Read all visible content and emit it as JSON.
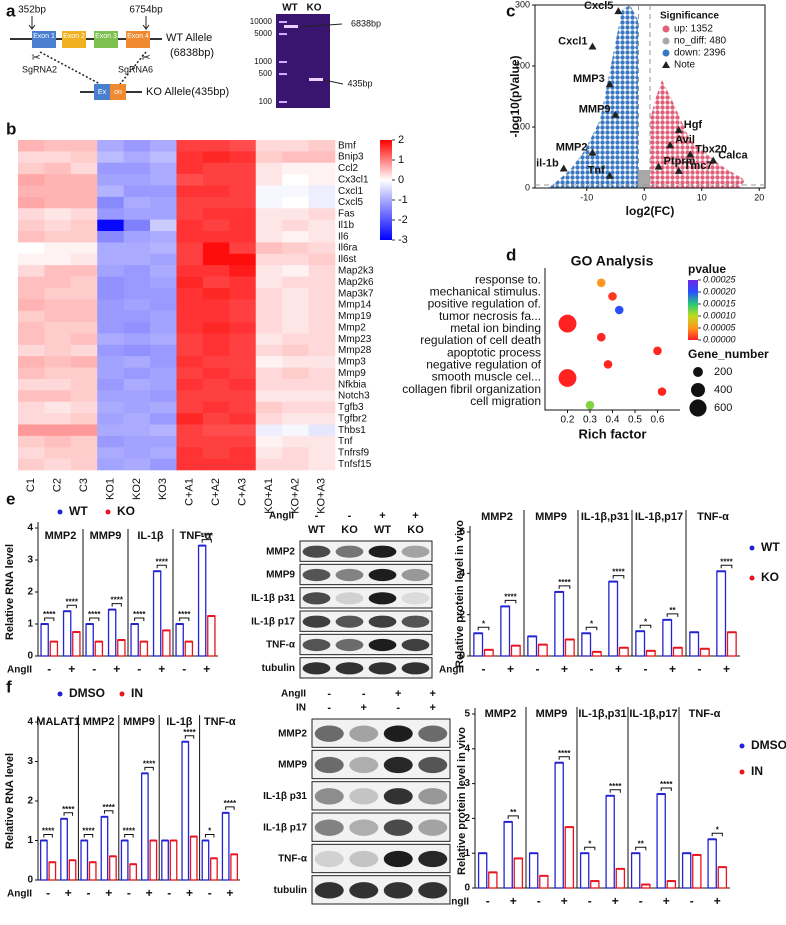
{
  "panel_labels": [
    "a",
    "b",
    "c",
    "d",
    "e",
    "f"
  ],
  "a": {
    "left_bp": "352bp",
    "right_bp": "6754bp",
    "exons": [
      "Exon 1",
      "Exon 2",
      "Exon 3",
      "Exon 4"
    ],
    "wt_allele": "WT Allele",
    "wt_size": "(6838bp)",
    "sgrna": [
      "SgRNA2",
      "SgRNA6"
    ],
    "ko_exon": [
      "Ex",
      "on"
    ],
    "ko_allele": "KO Allele(435bp)",
    "gel": {
      "lanes": [
        "WT",
        "KO"
      ],
      "ladder": [
        10000,
        5000,
        1000,
        500,
        100
      ],
      "bands": [
        "6838bp",
        "435bp"
      ]
    }
  },
  "b": {
    "type": "heatmap",
    "rows": [
      "Bmf",
      "Bnip3",
      "Ccl2",
      "Cx3cl1",
      "Cxcl1",
      "Cxcl5",
      "Fas",
      "Il1b",
      "Il6",
      "Il6ra",
      "Il6st",
      "Map2k3",
      "Map2k6",
      "Map3k7",
      "Mmp14",
      "Mmp19",
      "Mmp2",
      "Mmp23",
      "Mmp28",
      "Mmp3",
      "Mmp9",
      "Nfkbia",
      "Notch3",
      "Tgfb3",
      "Tgfbr2",
      "Thbs1",
      "Tnf",
      "Tnfrsf9",
      "Tnfsf15"
    ],
    "columns": [
      "C1",
      "C2",
      "C3",
      "KO1",
      "KO2",
      "KO3",
      "C+A1",
      "C+A2",
      "C+A3",
      "KO+A1",
      "KO+A2",
      "KO+A3"
    ],
    "values": [
      [
        0.6,
        0.5,
        0.5,
        -1.0,
        -1.2,
        -1.0,
        1.5,
        1.5,
        1.4,
        0.3,
        0.3,
        0.4
      ],
      [
        0.3,
        0.3,
        0.4,
        -0.8,
        -1.0,
        -0.8,
        1.6,
        1.7,
        1.6,
        0.4,
        0.5,
        0.5
      ],
      [
        0.4,
        0.5,
        0.3,
        -1.2,
        -1.2,
        -1.0,
        1.6,
        1.5,
        1.5,
        0.2,
        0.1,
        0.1
      ],
      [
        0.7,
        0.6,
        0.6,
        -1.1,
        -1.1,
        -1.0,
        1.4,
        1.5,
        1.5,
        0.2,
        0.0,
        0.1
      ],
      [
        0.6,
        0.6,
        0.6,
        -0.9,
        -1.2,
        -1.2,
        1.6,
        1.6,
        1.5,
        -0.1,
        -0.1,
        -0.2
      ],
      [
        0.7,
        0.6,
        0.6,
        -1.4,
        -1.0,
        -1.1,
        1.5,
        1.5,
        1.5,
        -0.1,
        0.0,
        -0.2
      ],
      [
        0.3,
        0.2,
        0.3,
        -1.2,
        -1.1,
        -1.1,
        1.5,
        1.6,
        1.6,
        0.2,
        0.2,
        0.3
      ],
      [
        0.4,
        0.3,
        0.4,
        -2.9,
        -1.5,
        -0.6,
        1.6,
        1.5,
        1.6,
        0.2,
        0.3,
        0.2
      ],
      [
        0.5,
        0.4,
        0.4,
        -1.4,
        -1.1,
        -1.0,
        1.6,
        1.6,
        1.6,
        0.2,
        0.1,
        0.2
      ],
      [
        0.0,
        0.1,
        0.1,
        -1.0,
        -1.0,
        -0.9,
        1.5,
        1.9,
        1.5,
        0.5,
        0.4,
        0.3
      ],
      [
        0.1,
        0.1,
        0.2,
        -1.0,
        -1.0,
        -1.1,
        1.5,
        1.9,
        1.9,
        0.3,
        0.3,
        0.4
      ],
      [
        0.3,
        0.5,
        0.5,
        -1.1,
        -1.2,
        -1.0,
        1.6,
        1.6,
        1.8,
        0.2,
        0.1,
        0.3
      ],
      [
        0.5,
        0.5,
        0.4,
        -1.3,
        -1.2,
        -1.1,
        1.7,
        1.5,
        1.6,
        0.2,
        0.3,
        0.3
      ],
      [
        0.5,
        0.4,
        0.4,
        -1.3,
        -1.2,
        -1.2,
        1.6,
        1.7,
        1.6,
        0.3,
        0.2,
        0.3
      ],
      [
        0.6,
        0.5,
        0.5,
        -1.2,
        -1.1,
        -1.2,
        1.6,
        1.6,
        1.5,
        0.3,
        0.2,
        0.3
      ],
      [
        0.4,
        0.5,
        0.5,
        -1.2,
        -1.2,
        -1.1,
        1.6,
        1.6,
        1.5,
        0.3,
        0.2,
        0.3
      ],
      [
        0.5,
        0.4,
        0.4,
        -1.2,
        -1.3,
        -1.1,
        1.6,
        1.7,
        1.6,
        0.3,
        0.2,
        0.3
      ],
      [
        0.5,
        0.4,
        0.5,
        -1.0,
        -1.1,
        -1.0,
        1.5,
        1.6,
        1.5,
        0.2,
        0.3,
        0.3
      ],
      [
        0.3,
        0.4,
        0.3,
        -1.2,
        -1.3,
        -1.2,
        1.5,
        1.6,
        1.5,
        0.3,
        0.4,
        0.3
      ],
      [
        0.6,
        0.5,
        0.6,
        -1.1,
        -1.0,
        -1.2,
        1.6,
        1.5,
        1.5,
        0.1,
        0.2,
        0.2
      ],
      [
        0.5,
        0.4,
        0.4,
        -1.1,
        -1.2,
        -1.1,
        1.5,
        1.6,
        1.5,
        0.3,
        0.4,
        0.3
      ],
      [
        0.3,
        0.3,
        0.4,
        -1.2,
        -1.0,
        -1.1,
        1.6,
        1.5,
        1.6,
        0.3,
        0.3,
        0.3
      ],
      [
        0.5,
        0.5,
        0.4,
        -1.1,
        -1.1,
        -1.2,
        1.5,
        1.5,
        1.5,
        0.2,
        0.2,
        0.2
      ],
      [
        0.3,
        0.2,
        0.3,
        -1.0,
        -1.1,
        -1.0,
        1.5,
        1.6,
        1.5,
        0.4,
        0.3,
        0.3
      ],
      [
        0.3,
        0.3,
        0.4,
        -1.1,
        -1.0,
        -1.2,
        1.7,
        1.5,
        1.6,
        0.3,
        0.2,
        0.2
      ],
      [
        0.8,
        0.8,
        0.8,
        -1.0,
        -1.0,
        -0.9,
        1.5,
        1.4,
        1.4,
        -0.2,
        -0.1,
        -0.3
      ],
      [
        0.4,
        0.5,
        0.4,
        -1.2,
        -1.1,
        -1.1,
        1.5,
        1.5,
        1.5,
        0.1,
        0.2,
        0.2
      ],
      [
        0.3,
        0.4,
        0.4,
        -1.0,
        -1.1,
        -1.0,
        1.6,
        1.5,
        1.6,
        0.2,
        0.3,
        0.2
      ],
      [
        0.4,
        0.3,
        0.4,
        -1.1,
        -1.0,
        -1.2,
        1.6,
        1.6,
        1.6,
        0.3,
        0.3,
        0.2
      ]
    ],
    "colorbar": {
      "lim": [
        -3,
        2
      ],
      "ticks": [
        2,
        1,
        0,
        -1,
        -2,
        -3
      ]
    }
  },
  "c": {
    "type": "volcano",
    "xlabel": "log2(FC)",
    "ylabel": "-log10(pValue)",
    "xlim": [
      -19,
      21
    ],
    "ylim": [
      0,
      300
    ],
    "xticks": [
      -10,
      0,
      10,
      20
    ],
    "yticks": [
      0,
      100,
      200,
      300
    ],
    "legend_title": "Significance",
    "legend": [
      {
        "label": "up: 1352",
        "color": "#e0607a"
      },
      {
        "label": "no_diff: 480",
        "color": "#a8a8a8"
      },
      {
        "label": "down: 2396",
        "color": "#3a78c2"
      },
      {
        "label": "Note",
        "color": "#222222"
      }
    ],
    "notes": [
      {
        "name": "Cxcl5",
        "x": -4.5,
        "y": 290
      },
      {
        "name": "Cxcl1",
        "x": -9,
        "y": 232
      },
      {
        "name": "MMP3",
        "x": -6,
        "y": 170
      },
      {
        "name": "MMP9",
        "x": -5,
        "y": 120
      },
      {
        "name": "MMP2",
        "x": -9,
        "y": 58
      },
      {
        "name": "il-1b",
        "x": -14,
        "y": 32
      },
      {
        "name": "Tnf",
        "x": -6,
        "y": 20
      },
      {
        "name": "Hgf",
        "x": 6,
        "y": 95
      },
      {
        "name": "Avil",
        "x": 4.5,
        "y": 70
      },
      {
        "name": "Tbx20",
        "x": 8,
        "y": 55
      },
      {
        "name": "Calca",
        "x": 12,
        "y": 45
      },
      {
        "name": "Ptprm",
        "x": 2.5,
        "y": 35
      },
      {
        "name": "Tmc7",
        "x": 6,
        "y": 28
      }
    ]
  },
  "d": {
    "type": "bubble",
    "title": "GO Analysis",
    "xlabel": "Rich factor",
    "xlim": [
      0.1,
      0.7
    ],
    "xticks": [
      0.2,
      0.3,
      0.4,
      0.5,
      0.6
    ],
    "terms": [
      "response to.",
      "mechanical stimulus.",
      "positive regulation of.",
      "tumor necrosis fa...",
      "metal ion binding",
      "regulation of cell death",
      "apoptotic process",
      "negative regulation of",
      "smooth muscle cel...",
      "collagen fibril organization",
      "cell migration"
    ],
    "points": [
      {
        "rich": 0.35,
        "pvalue": 5e-05,
        "genes": 150
      },
      {
        "rich": 0.4,
        "pvalue": 1e-05,
        "genes": 150
      },
      {
        "rich": 0.43,
        "pvalue": 0.0002,
        "genes": 150
      },
      {
        "rich": 0.2,
        "pvalue": 1e-06,
        "genes": 650
      },
      {
        "rich": 0.35,
        "pvalue": 2e-06,
        "genes": 150
      },
      {
        "rich": 0.6,
        "pvalue": 3e-06,
        "genes": 150
      },
      {
        "rich": 0.38,
        "pvalue": 2e-06,
        "genes": 150
      },
      {
        "rich": 0.2,
        "pvalue": 1e-06,
        "genes": 650
      },
      {
        "rich": 0.62,
        "pvalue": 2e-06,
        "genes": 150
      },
      {
        "rich": 0.3,
        "pvalue": 0.00012,
        "genes": 150
      }
    ],
    "pvalue_title": "pvalue",
    "pvalue_lim": [
      0,
      0.00025
    ],
    "pvalue_ticks": [
      {
        "value": 0.00025,
        "label": "0.00025"
      },
      {
        "value": 0.0002,
        "label": "0.00020"
      },
      {
        "value": 0.00015,
        "label": "0.00015"
      },
      {
        "value": 0.0001,
        "label": "0.00010"
      },
      {
        "value": 5e-05,
        "label": "0.00005"
      },
      {
        "value": 0,
        "label": "0.00000"
      }
    ],
    "size_title": "Gene_number",
    "size_ticks": [
      200,
      400,
      600
    ]
  },
  "e": {
    "rna": {
      "type": "grouped_bar",
      "ylabel": "Relative RNA level",
      "ylim": [
        0,
        4
      ],
      "yticks": [
        0,
        1,
        2,
        3,
        4
      ],
      "genes": [
        "MMP2",
        "MMP9",
        "IL-1β",
        "TNF-α"
      ],
      "condition_label": "AngII",
      "conditions": [
        "-",
        "+"
      ],
      "series": [
        {
          "name": "WT",
          "color": "#2323d2",
          "values": [
            1,
            1.4,
            1,
            1.45,
            1,
            2.65,
            1,
            3.45
          ]
        },
        {
          "name": "KO",
          "color": "#e8141e",
          "values": [
            0.45,
            0.75,
            0.45,
            0.5,
            0.45,
            0.8,
            0.45,
            1.25
          ]
        }
      ],
      "significance": [
        [
          "****",
          "****"
        ],
        [
          "****",
          "****"
        ],
        [
          "****",
          "****"
        ],
        [
          "****",
          "****"
        ]
      ]
    },
    "blot": {
      "angii_label": "AngII",
      "angii": [
        "-",
        "-",
        "+",
        "+"
      ],
      "lanes": [
        "WT",
        "KO",
        "WT",
        "KO"
      ],
      "proteins": [
        "MMP2",
        "MMP9",
        "IL-1β p31",
        "IL-1β p17",
        "TNF-α",
        "tubulin"
      ]
    },
    "protein": {
      "type": "grouped_bar",
      "ylabel": "Relative protein level in vivo",
      "ylim": [
        0,
        6
      ],
      "yticks": [
        0,
        2,
        4,
        6
      ],
      "genes": [
        "MMP2",
        "MMP9",
        "IL-1β,p31",
        "IL-1β,p17",
        "TNF-α"
      ],
      "condition_label": "AngII",
      "conditions": [
        "-",
        "+"
      ],
      "series": [
        {
          "name": "WT",
          "color": "#2323d2",
          "values": [
            1.1,
            2.4,
            0.95,
            3.1,
            1.1,
            3.6,
            1.2,
            1.75,
            1.15,
            4.1
          ]
        },
        {
          "name": "KO",
          "color": "#e8141e",
          "values": [
            0.3,
            0.5,
            0.55,
            0.8,
            0.2,
            0.4,
            0.25,
            0.4,
            0.35,
            1.15
          ]
        }
      ],
      "significance": [
        [
          "*",
          "****"
        ],
        [
          null,
          "****"
        ],
        [
          "*",
          "****"
        ],
        [
          "*",
          "**"
        ],
        [
          null,
          "****"
        ]
      ]
    }
  },
  "f": {
    "rna": {
      "type": "grouped_bar",
      "ylabel": "Relative RNA level",
      "ylim": [
        0,
        4
      ],
      "yticks": [
        0,
        1,
        2,
        3,
        4
      ],
      "genes": [
        "MALAT1",
        "MMP2",
        "MMP9",
        "IL-1β",
        "TNF-α"
      ],
      "condition_label": "AngII",
      "conditions": [
        "-",
        "+"
      ],
      "series": [
        {
          "name": "DMSO",
          "color": "#2323d2",
          "values": [
            1,
            1.55,
            1,
            1.6,
            1,
            2.7,
            1,
            3.5,
            1,
            1.7
          ]
        },
        {
          "name": "IN",
          "color": "#e8141e",
          "values": [
            0.45,
            0.5,
            0.45,
            0.6,
            0.4,
            1.0,
            1.0,
            1.1,
            0.55,
            0.65
          ]
        }
      ],
      "significance": [
        [
          "****",
          "****"
        ],
        [
          "****",
          "****"
        ],
        [
          "****",
          "****"
        ],
        [
          null,
          "****"
        ],
        [
          "*",
          "****"
        ]
      ]
    },
    "blot": {
      "angii_label": "AngII",
      "angii": [
        "-",
        "-",
        "+",
        "+"
      ],
      "in_label": "IN",
      "in": [
        "-",
        "+",
        "-",
        "+"
      ],
      "proteins": [
        "MMP2",
        "MMP9",
        "IL-1β p31",
        "IL-1β p17",
        "TNF-α",
        "tubulin"
      ]
    },
    "protein": {
      "type": "grouped_bar",
      "ylabel": "Relative protein level in vivo",
      "ylim": [
        0,
        5
      ],
      "yticks": [
        0,
        1,
        2,
        3,
        4,
        5
      ],
      "genes": [
        "MMP2",
        "MMP9",
        "IL-1β,p31",
        "IL-1β,p17",
        "TNF-α"
      ],
      "condition_label": "AngII",
      "conditions": [
        "-",
        "+"
      ],
      "series": [
        {
          "name": "DMSO",
          "color": "#2323d2",
          "values": [
            1,
            1.9,
            1,
            3.6,
            1,
            2.65,
            1,
            2.7,
            1,
            1.4
          ]
        },
        {
          "name": "IN",
          "color": "#e8141e",
          "values": [
            0.45,
            0.85,
            0.35,
            1.75,
            0.2,
            0.55,
            0.1,
            0.2,
            0.95,
            0.6
          ]
        }
      ],
      "significance": [
        [
          null,
          "**"
        ],
        [
          null,
          "****"
        ],
        [
          "*",
          "****"
        ],
        [
          "**",
          "****"
        ],
        [
          null,
          "*"
        ]
      ]
    }
  }
}
